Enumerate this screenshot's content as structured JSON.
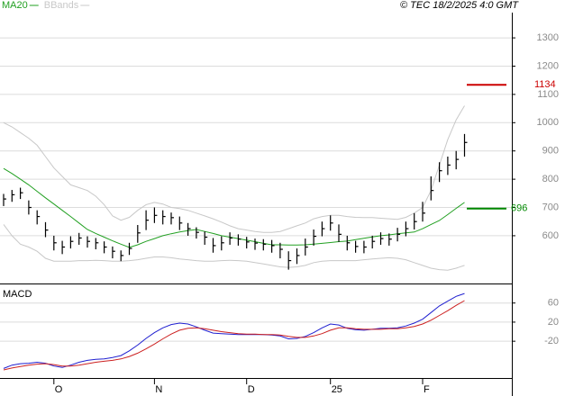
{
  "header": {
    "source": "© TEC 18/2/2025 4:0 GMT"
  },
  "chart_data": [
    {
      "type": "ohlc",
      "ylim": [
        431,
        1434
      ],
      "yticks": [
        600,
        700,
        800,
        900,
        1000,
        1100,
        1200,
        1300
      ],
      "grid": true,
      "bars": {
        "color": "#000000",
        "high": [
          748,
          762,
          770,
          725,
          690,
          648,
          600,
          582,
          598,
          610,
          598,
          592,
          580,
          562,
          548,
          575,
          638,
          690,
          700,
          690,
          682,
          668,
          645,
          630,
          615,
          592,
          598,
          612,
          605,
          596,
          590,
          588,
          585,
          575,
          545,
          555,
          590,
          622,
          650,
          672,
          640,
          600,
          582,
          582,
          600,
          612,
          608,
          628,
          650,
          680,
          720,
          810,
          860,
          880,
          900,
          960
        ],
        "low": [
          705,
          720,
          730,
          675,
          640,
          595,
          548,
          535,
          555,
          568,
          558,
          552,
          538,
          520,
          510,
          532,
          575,
          620,
          645,
          640,
          640,
          620,
          600,
          590,
          568,
          540,
          548,
          568,
          565,
          555,
          550,
          548,
          540,
          520,
          480,
          500,
          530,
          565,
          598,
          618,
          578,
          548,
          540,
          538,
          555,
          568,
          565,
          580,
          598,
          622,
          650,
          725,
          790,
          815,
          835,
          880
        ],
        "close": [
          730,
          745,
          752,
          700,
          668,
          620,
          575,
          560,
          580,
          592,
          580,
          575,
          560,
          545,
          530,
          555,
          610,
          655,
          672,
          668,
          664,
          645,
          625,
          612,
          595,
          565,
          575,
          592,
          588,
          578,
          574,
          570,
          565,
          552,
          512,
          530,
          560,
          598,
          625,
          645,
          605,
          575,
          562,
          560,
          580,
          590,
          588,
          605,
          625,
          650,
          680,
          760,
          830,
          850,
          870,
          930
        ]
      },
      "series": [
        {
          "name": "MA20",
          "color": "#22a022",
          "values": [
            838,
            820,
            800,
            780,
            757,
            734,
            712,
            690,
            668,
            645,
            622,
            608,
            595,
            582,
            570,
            559,
            568,
            580,
            590,
            600,
            607,
            613,
            618,
            622,
            615,
            608,
            600,
            595,
            590,
            584,
            579,
            573,
            568,
            568,
            567,
            567,
            568,
            570,
            573,
            576,
            579,
            581,
            586,
            591,
            596,
            600,
            603,
            607,
            610,
            613,
            625,
            640,
            654,
            675,
            697,
            718
          ]
        },
        {
          "name": "BBands",
          "color": "#c8c8c8",
          "upper": [
            1000,
            985,
            965,
            945,
            920,
            880,
            840,
            810,
            780,
            770,
            760,
            740,
            710,
            670,
            655,
            665,
            690,
            710,
            718,
            712,
            700,
            696,
            690,
            680,
            670,
            660,
            648,
            635,
            625,
            620,
            615,
            612,
            612,
            615,
            625,
            635,
            645,
            660,
            668,
            672,
            672,
            668,
            665,
            664,
            664,
            662,
            660,
            658,
            665,
            680,
            700,
            760,
            850,
            940,
            1010,
            1060
          ],
          "lower": [
            640,
            600,
            570,
            560,
            545,
            520,
            510,
            510,
            510,
            512,
            512,
            513,
            512,
            510,
            510,
            512,
            515,
            520,
            525,
            525,
            522,
            518,
            515,
            512,
            510,
            510,
            512,
            513,
            512,
            510,
            505,
            500,
            495,
            490,
            488,
            490,
            495,
            505,
            510,
            512,
            512,
            512,
            512,
            515,
            518,
            520,
            522,
            520,
            515,
            505,
            495,
            485,
            480,
            478,
            485,
            495
          ]
        }
      ],
      "levels": [
        {
          "value": 1134,
          "color": "#cc0000"
        },
        {
          "value": 696,
          "color": "#008800"
        }
      ]
    },
    {
      "type": "line",
      "title": "MACD",
      "categories": [
        null,
        null,
        null,
        null,
        null,
        null,
        "O",
        null,
        null,
        null,
        null,
        null,
        null,
        null,
        null,
        null,
        null,
        null,
        "N",
        null,
        null,
        null,
        null,
        null,
        null,
        null,
        null,
        null,
        null,
        "D",
        null,
        null,
        null,
        null,
        null,
        null,
        null,
        null,
        null,
        "25",
        null,
        null,
        null,
        null,
        null,
        null,
        null,
        null,
        null,
        null,
        "F",
        null,
        null,
        null,
        null,
        null
      ],
      "ylim": [
        -97,
        99
      ],
      "yticks": [
        -20,
        20,
        60
      ],
      "grid": true,
      "series": [
        {
          "color": "#2020d0",
          "values": [
            -77,
            -70,
            -67,
            -66,
            -64,
            -66,
            -72,
            -75,
            -70,
            -64,
            -60,
            -58,
            -57,
            -54,
            -50,
            -40,
            -28,
            -14,
            -2,
            8,
            15,
            18,
            16,
            10,
            3,
            -3,
            -4,
            -5,
            -6,
            -6,
            -6,
            -6,
            -7,
            -9,
            -15,
            -14,
            -10,
            -2,
            8,
            16,
            14,
            7,
            4,
            3,
            5,
            7,
            7,
            8,
            12,
            18,
            26,
            40,
            54,
            64,
            74,
            80
          ]
        },
        {
          "color": "#cc2020",
          "values": [
            -80,
            -76,
            -73,
            -70,
            -68,
            -67,
            -69,
            -72,
            -72,
            -70,
            -67,
            -64,
            -62,
            -60,
            -57,
            -52,
            -45,
            -36,
            -26,
            -15,
            -5,
            3,
            7,
            8,
            6,
            3,
            0,
            -2,
            -4,
            -5,
            -5,
            -6,
            -6,
            -7,
            -10,
            -12,
            -12,
            -9,
            -4,
            3,
            8,
            8,
            6,
            5,
            5,
            5,
            6,
            6,
            8,
            11,
            16,
            24,
            34,
            44,
            55,
            65
          ]
        }
      ]
    }
  ]
}
